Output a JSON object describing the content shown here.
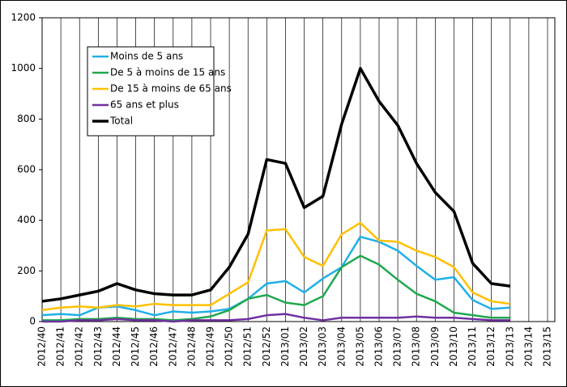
{
  "chart_data": {
    "type": "line",
    "categories": [
      "2012/40",
      "2012/41",
      "2012/42",
      "2012/43",
      "2012/44",
      "2012/45",
      "2012/46",
      "2012/47",
      "2012/48",
      "2012/49",
      "2012/50",
      "2012/51",
      "2012/52",
      "2013/01",
      "2013/02",
      "2013/03",
      "2013/04",
      "2013/05",
      "2013/06",
      "2013/07",
      "2013/08",
      "2013/09",
      "2013/10",
      "2013/11",
      "2013/12",
      "2013/13",
      "2013/14",
      "2013/15"
    ],
    "series": [
      {
        "name": "Moins de 5 ans",
        "color": "#1fb0e8",
        "values": [
          25,
          30,
          25,
          55,
          60,
          45,
          25,
          40,
          35,
          40,
          50,
          90,
          150,
          160,
          115,
          170,
          215,
          335,
          315,
          280,
          220,
          165,
          175,
          85,
          50,
          55,
          null,
          null
        ]
      },
      {
        "name": "De 5 à moins de 15 ans",
        "color": "#1fa84f",
        "values": [
          5,
          5,
          10,
          10,
          15,
          10,
          10,
          5,
          10,
          20,
          45,
          90,
          105,
          75,
          65,
          100,
          215,
          260,
          225,
          165,
          110,
          80,
          35,
          25,
          15,
          15,
          null,
          null
        ]
      },
      {
        "name": "De 15 à moins de 65 ans",
        "color": "#ffc000",
        "values": [
          45,
          55,
          60,
          55,
          65,
          60,
          70,
          65,
          65,
          65,
          110,
          155,
          360,
          365,
          255,
          220,
          345,
          390,
          320,
          315,
          280,
          255,
          215,
          115,
          80,
          70,
          null,
          null
        ]
      },
      {
        "name": "65 ans et plus",
        "color": "#7030a0",
        "values": [
          0,
          0,
          5,
          5,
          10,
          5,
          5,
          0,
          5,
          5,
          5,
          10,
          25,
          30,
          15,
          5,
          15,
          15,
          15,
          15,
          20,
          15,
          15,
          10,
          5,
          5,
          null,
          null
        ]
      },
      {
        "name": "Total",
        "color": "#000000",
        "values": [
          80,
          90,
          105,
          120,
          150,
          125,
          110,
          105,
          105,
          125,
          215,
          345,
          640,
          625,
          450,
          495,
          780,
          1000,
          870,
          775,
          625,
          510,
          435,
          230,
          150,
          140,
          null,
          null
        ]
      }
    ],
    "ylim": [
      0,
      1200
    ],
    "yticks": [
      0,
      200,
      400,
      600,
      800,
      1000,
      1200
    ],
    "grid": "vertical",
    "legend": "upper left"
  }
}
